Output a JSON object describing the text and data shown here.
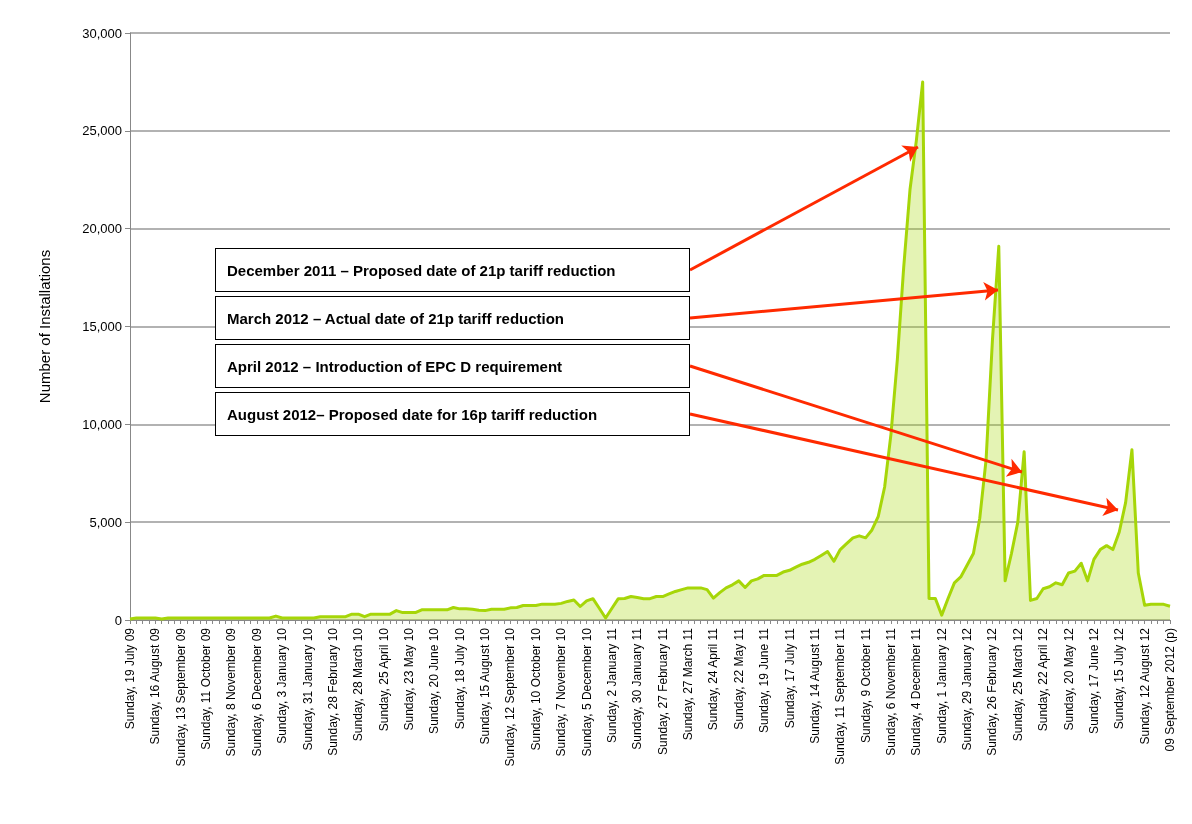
{
  "chart_data": {
    "type": "area",
    "ylabel": "Number of Installations",
    "categories": [
      "Sunday, 19 July 09",
      null,
      null,
      null,
      "Sunday, 16 August 09",
      null,
      null,
      null,
      "Sunday, 13 September 09",
      null,
      null,
      null,
      "Sunday, 11 October 09",
      null,
      null,
      null,
      "Sunday, 8 November 09",
      null,
      null,
      null,
      "Sunday, 6 December 09",
      null,
      null,
      null,
      "Sunday, 3 January 10",
      null,
      null,
      null,
      "Sunday, 31 January 10",
      null,
      null,
      null,
      "Sunday, 28 February 10",
      null,
      null,
      null,
      "Sunday, 28 March 10",
      null,
      null,
      null,
      "Sunday, 25 April 10",
      null,
      null,
      null,
      "Sunday, 23 May 10",
      null,
      null,
      null,
      "Sunday, 20 June 10",
      null,
      null,
      null,
      "Sunday, 18 July 10",
      null,
      null,
      null,
      "Sunday, 15 August 10",
      null,
      null,
      null,
      "Sunday, 12 September 10",
      null,
      null,
      null,
      "Sunday, 10 October 10",
      null,
      null,
      null,
      "Sunday, 7 November 10",
      null,
      null,
      null,
      "Sunday, 5 December 10",
      null,
      null,
      null,
      "Sunday, 2 January 11",
      null,
      null,
      null,
      "Sunday, 30 January 11",
      null,
      null,
      null,
      "Sunday, 27 February 11",
      null,
      null,
      null,
      "Sunday, 27 March 11",
      null,
      null,
      null,
      "Sunday, 24 April 11",
      null,
      null,
      null,
      "Sunday, 22 May 11",
      null,
      null,
      null,
      "Sunday, 19 June 11",
      null,
      null,
      null,
      "Sunday, 17 July 11",
      null,
      null,
      null,
      "Sunday, 14 August 11",
      null,
      null,
      null,
      "Sunday, 11 September 11",
      null,
      null,
      null,
      "Sunday, 9 October 11",
      null,
      null,
      null,
      "Sunday, 6 November 11",
      null,
      null,
      null,
      "Sunday, 4 December 11",
      null,
      null,
      null,
      "Sunday, 1 January 12",
      null,
      null,
      null,
      "Sunday, 29 January 12",
      null,
      null,
      null,
      "Sunday, 26 February 12",
      null,
      null,
      null,
      "Sunday, 25 March 12",
      null,
      null,
      null,
      "Sunday, 22 April 12",
      null,
      null,
      null,
      "Sunday, 20 May 12",
      null,
      null,
      null,
      "Sunday, 17 June 12",
      null,
      null,
      null,
      "Sunday, 15 July 12",
      null,
      null,
      null,
      "Sunday, 12 August 12",
      null,
      null,
      null,
      "09 September 2012 (p)"
    ],
    "series": [
      {
        "color": "#a6d608",
        "values": [
          50,
          100,
          100,
          100,
          100,
          50,
          100,
          100,
          100,
          100,
          100,
          100,
          100,
          100,
          100,
          100,
          100,
          100,
          100,
          100,
          100,
          100,
          100,
          200,
          100,
          100,
          100,
          100,
          100,
          100,
          170,
          170,
          170,
          170,
          170,
          300,
          300,
          170,
          300,
          300,
          300,
          300,
          480,
          380,
          380,
          380,
          520,
          520,
          520,
          520,
          520,
          640,
          570,
          570,
          550,
          500,
          480,
          550,
          550,
          550,
          620,
          640,
          740,
          740,
          740,
          810,
          810,
          810,
          850,
          950,
          1020,
          690,
          980,
          1090,
          600,
          100,
          600,
          1090,
          1100,
          1200,
          1150,
          1090,
          1090,
          1200,
          1200,
          1330,
          1460,
          1550,
          1640,
          1640,
          1640,
          1550,
          1120,
          1400,
          1640,
          1800,
          2000,
          1660,
          2000,
          2100,
          2280,
          2280,
          2280,
          2450,
          2540,
          2700,
          2850,
          2950,
          3100,
          3300,
          3500,
          3000,
          3600,
          3900,
          4200,
          4300,
          4200,
          4600,
          5300,
          6800,
          9500,
          13300,
          18000,
          22000,
          24500,
          27500,
          1100,
          1100,
          250,
          1100,
          1900,
          2200,
          2800,
          3400,
          5200,
          8200,
          14300,
          19100,
          2000,
          3400,
          5000,
          8600,
          1000,
          1100,
          1600,
          1700,
          1900,
          1800,
          2400,
          2500,
          2900,
          2000,
          3100,
          3600,
          3800,
          3600,
          4500,
          6000,
          8700,
          2400,
          750,
          800,
          800,
          800,
          700
        ]
      }
    ],
    "ylim": [
      0,
      30000
    ],
    "yticks": [
      {
        "value": 0,
        "label": "0"
      },
      {
        "value": 5000,
        "label": "5,000"
      },
      {
        "value": 10000,
        "label": "10,000"
      },
      {
        "value": 15000,
        "label": "15,000"
      },
      {
        "value": 20000,
        "label": "20,000"
      },
      {
        "value": 25000,
        "label": "25,000"
      },
      {
        "value": 30000,
        "label": "30,000"
      }
    ],
    "grid": "y",
    "legend": false,
    "annotations": [
      "December 2011 – Proposed date of 21p tariff reduction",
      "March 2012 – Actual date of 21p tariff reduction",
      "April 2012 – Introduction of EPC D requirement",
      "August 2012– Proposed date for 16p tariff reduction"
    ]
  }
}
